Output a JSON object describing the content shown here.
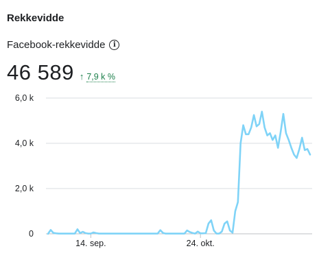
{
  "header": {
    "title": "Rekkevidde"
  },
  "metric": {
    "label": "Facebook-rekkevidde",
    "info_icon": "info-icon",
    "value": "46 589",
    "change": "7,9 k %",
    "change_direction": "up",
    "change_color": "#1b7f4a"
  },
  "chart_data": {
    "type": "line",
    "title": "",
    "xlabel": "",
    "ylabel": "",
    "ylim": [
      0,
      6000
    ],
    "yticks": [
      {
        "value": 0,
        "label": "0"
      },
      {
        "value": 2000,
        "label": "2,0 k"
      },
      {
        "value": 4000,
        "label": "4,0 k"
      },
      {
        "value": 6000,
        "label": "6,0 k"
      }
    ],
    "xticks": [
      {
        "index": 16,
        "label": "14. sep."
      },
      {
        "index": 57,
        "label": "24. okt."
      }
    ],
    "grid": true,
    "line_color": "#7fd3f7",
    "series": [
      {
        "values": [
          0,
          170,
          40,
          20,
          10,
          10,
          10,
          10,
          10,
          10,
          10,
          200,
          30,
          90,
          30,
          10,
          10,
          60,
          30,
          10,
          10,
          10,
          10,
          10,
          10,
          10,
          10,
          10,
          10,
          10,
          10,
          10,
          10,
          10,
          10,
          10,
          10,
          10,
          10,
          10,
          10,
          10,
          160,
          40,
          10,
          10,
          10,
          10,
          10,
          10,
          10,
          10,
          150,
          80,
          40,
          10,
          100,
          20,
          20,
          30,
          450,
          600,
          150,
          10,
          10,
          100,
          450,
          550,
          150,
          50,
          1000,
          1400,
          4000,
          4800,
          4400,
          4400,
          4700,
          5250,
          4750,
          4850,
          5400,
          4700,
          4350,
          4450,
          4150,
          4350,
          3800,
          4500,
          5300,
          4450,
          4150,
          3800,
          3500,
          3350,
          3750,
          4250,
          3700,
          3750,
          3500
        ]
      }
    ]
  }
}
